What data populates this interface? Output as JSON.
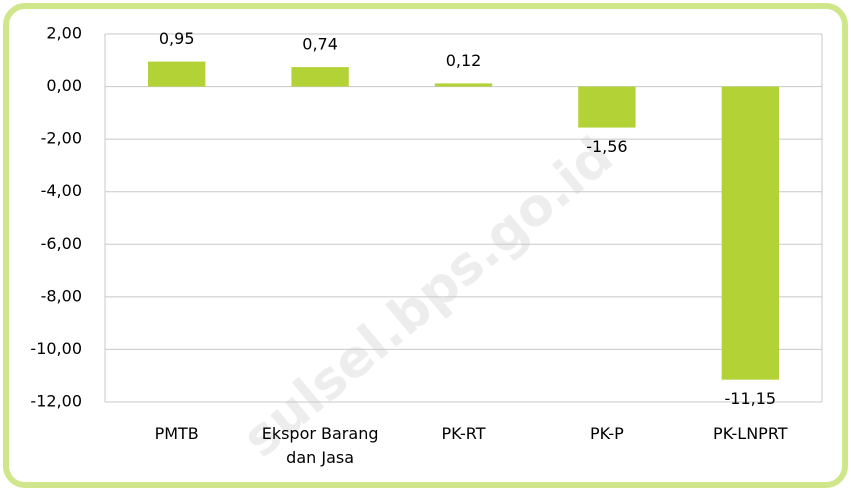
{
  "chart_data": {
    "type": "bar",
    "categories": [
      "PMTB",
      "Ekspor Barang dan Jasa",
      "PK-RT",
      "PK-P",
      "PK-LNPRT"
    ],
    "values": [
      0.95,
      0.74,
      0.12,
      -1.56,
      -11.15
    ],
    "value_labels": [
      "0,95",
      "0,74",
      "0,12",
      "-1,56",
      "-11,15"
    ],
    "color": "#b2d235",
    "ylim": [
      -12,
      2
    ],
    "yticks": [
      {
        "value": 2,
        "label": "2,00"
      },
      {
        "value": 0,
        "label": "0,00"
      },
      {
        "value": -2,
        "label": "-2,00"
      },
      {
        "value": -4,
        "label": "-4,00"
      },
      {
        "value": -6,
        "label": "-6,00"
      },
      {
        "value": -8,
        "label": "-8,00"
      },
      {
        "value": -10,
        "label": "-10,00"
      },
      {
        "value": -12,
        "label": "-12,00"
      }
    ],
    "grid": true,
    "watermark": "sulsel.bps.go.id"
  }
}
